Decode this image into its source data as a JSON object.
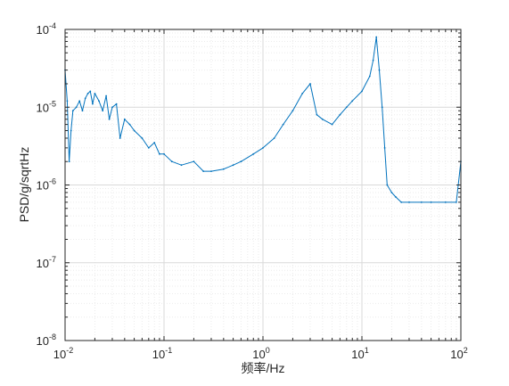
{
  "chart_data": {
    "type": "line",
    "title": "",
    "xlabel": "频率/Hz",
    "ylabel": "PSD/g/sqrtHz",
    "x_scale": "log",
    "y_scale": "log",
    "xlim": [
      0.01,
      100
    ],
    "ylim": [
      1e-08,
      0.0001
    ],
    "grid": "on (major and minor)",
    "legend": "none",
    "line_color": "#0072BD",
    "x_ticks": [
      {
        "base": "10",
        "exp": "-2"
      },
      {
        "base": "10",
        "exp": "-1"
      },
      {
        "base": "10",
        "exp": "0"
      },
      {
        "base": "10",
        "exp": "1"
      },
      {
        "base": "10",
        "exp": "2"
      }
    ],
    "y_ticks": [
      {
        "base": "10",
        "exp": "-8"
      },
      {
        "base": "10",
        "exp": "-7"
      },
      {
        "base": "10",
        "exp": "-6"
      },
      {
        "base": "10",
        "exp": "-5"
      },
      {
        "base": "10",
        "exp": "-4"
      }
    ],
    "series": [
      {
        "values_note_free": true,
        "x": [
          0.01,
          0.0105,
          0.011,
          0.0115,
          0.012,
          0.013,
          0.014,
          0.015,
          0.016,
          0.017,
          0.018,
          0.019,
          0.02,
          0.022,
          0.024,
          0.026,
          0.028,
          0.03,
          0.033,
          0.036,
          0.04,
          0.045,
          0.05,
          0.06,
          0.07,
          0.08,
          0.09,
          0.1,
          0.12,
          0.15,
          0.2,
          0.25,
          0.3,
          0.4,
          0.5,
          0.6,
          0.8,
          1.0,
          1.3,
          1.6,
          2.0,
          2.5,
          3.0,
          3.5,
          4.0,
          5.0,
          6.0,
          7.0,
          8.0,
          10.0,
          12.0,
          13.0,
          14.0,
          15.0,
          16.0,
          17.0,
          18.0,
          20.0,
          22.0,
          25.0,
          30.0,
          40.0,
          50.0,
          70.0,
          90.0,
          100.0
        ],
        "y": [
          3e-05,
          1.2e-05,
          2e-06,
          5e-06,
          9e-06,
          1e-05,
          1.2e-05,
          9e-06,
          1.3e-05,
          1.5e-05,
          1.6e-05,
          1.1e-05,
          1.5e-05,
          1.2e-05,
          9e-06,
          1.4e-05,
          7e-06,
          1e-05,
          1.1e-05,
          4e-06,
          7e-06,
          6e-06,
          5e-06,
          4e-06,
          3e-06,
          3.5e-06,
          2.5e-06,
          2.5e-06,
          2e-06,
          1.8e-06,
          2e-06,
          1.5e-06,
          1.5e-06,
          1.6e-06,
          1.8e-06,
          2e-06,
          2.5e-06,
          3e-06,
          4e-06,
          6e-06,
          9e-06,
          1.5e-05,
          2e-05,
          8e-06,
          7e-06,
          6e-06,
          8e-06,
          1e-05,
          1.2e-05,
          1.6e-05,
          2.5e-05,
          4e-05,
          8e-05,
          3e-05,
          1e-05,
          3e-06,
          1e-06,
          8e-07,
          7e-07,
          6e-07,
          6e-07,
          6e-07,
          6e-07,
          6e-07,
          6e-07,
          2e-06
        ]
      }
    ]
  }
}
